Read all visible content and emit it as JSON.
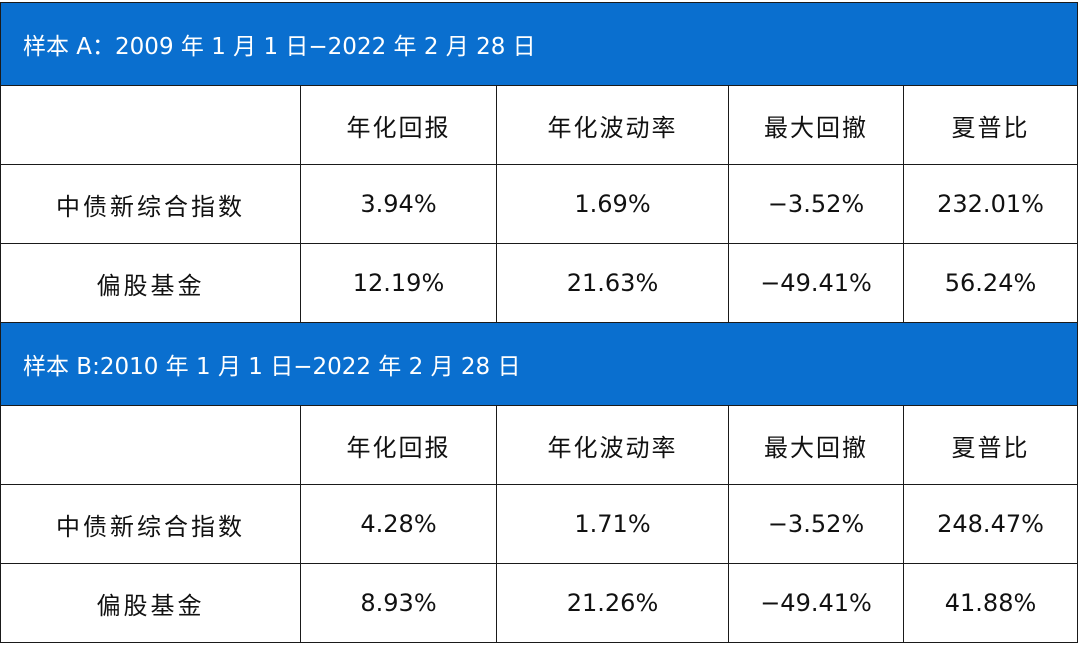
{
  "columns": [
    "",
    "年化回报",
    "年化波动率",
    "最大回撤",
    "夏普比"
  ],
  "sections": [
    {
      "title": "样本 A：2009 年 1 月 1 日−2022 年 2 月 28 日",
      "rows": [
        {
          "name": "中债新综合指数",
          "values": [
            "3.94%",
            "1.69%",
            "−3.52%",
            "232.01%"
          ]
        },
        {
          "name": "偏股基金",
          "values": [
            "12.19%",
            "21.63%",
            "−49.41%",
            "56.24%"
          ]
        }
      ]
    },
    {
      "title": "样本 B:2010 年 1 月 1 日−2022 年 2 月 28 日",
      "rows": [
        {
          "name": "中债新综合指数",
          "values": [
            "4.28%",
            "1.71%",
            "−3.52%",
            "248.47%"
          ]
        },
        {
          "name": "偏股基金",
          "values": [
            "8.93%",
            "21.26%",
            "−49.41%",
            "41.88%"
          ]
        }
      ]
    }
  ],
  "colors": {
    "band": "#0a6fcf",
    "band_text": "#ffffff",
    "border": "#1a1a1a"
  }
}
